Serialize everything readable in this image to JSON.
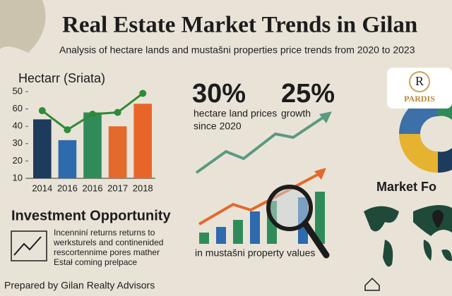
{
  "header": {
    "title": "Real Estate Market Trends in Gilan",
    "subtitle": "Analysis of hectare lands and mustašni properties price trends from 2020 to 2023"
  },
  "chart_data": {
    "type": "bar",
    "title": "Hectarr (Sriata)",
    "categories": [
      "2014",
      "2016",
      "2016",
      "2017",
      "2018"
    ],
    "series": [
      {
        "type": "bar",
        "colors": [
          "#1d3b5c",
          "#2d6aae",
          "#2f8c5a",
          "#e26a2c",
          "#e8652a"
        ],
        "values": [
          34,
          22,
          38,
          30,
          43
        ]
      },
      {
        "type": "line",
        "color": "#2e8b3a",
        "values": [
          39,
          28,
          37,
          38,
          49
        ]
      }
    ],
    "ylim": [
      0,
      50
    ],
    "yticks": [
      50,
      {
        "value": 40,
        "label": "60"
      },
      {
        "value": 30,
        "label": "40"
      },
      {
        "value": 20,
        "label": "30"
      },
      {
        "value": 10,
        "label": "20"
      },
      {
        "value": 0,
        "label": "10"
      }
    ]
  },
  "stats": [
    {
      "value": "30%",
      "label": [
        "hectare land prices",
        "since 2020"
      ]
    },
    {
      "value": "25%",
      "label": [
        "growth"
      ]
    }
  ],
  "values_caption": "in mustašni property values",
  "investment": {
    "title": "Investment Opportunity",
    "lines": [
      "Incenniní returns returns to",
      "werksturels and continenided",
      "rescortennime pores mather",
      "Estał coming prelpace"
    ]
  },
  "forecast_title": "Market Fo",
  "logo": {
    "mark": "R",
    "name": "PARDIS"
  },
  "footer": "Prepared by Gilan Realty Advisors"
}
